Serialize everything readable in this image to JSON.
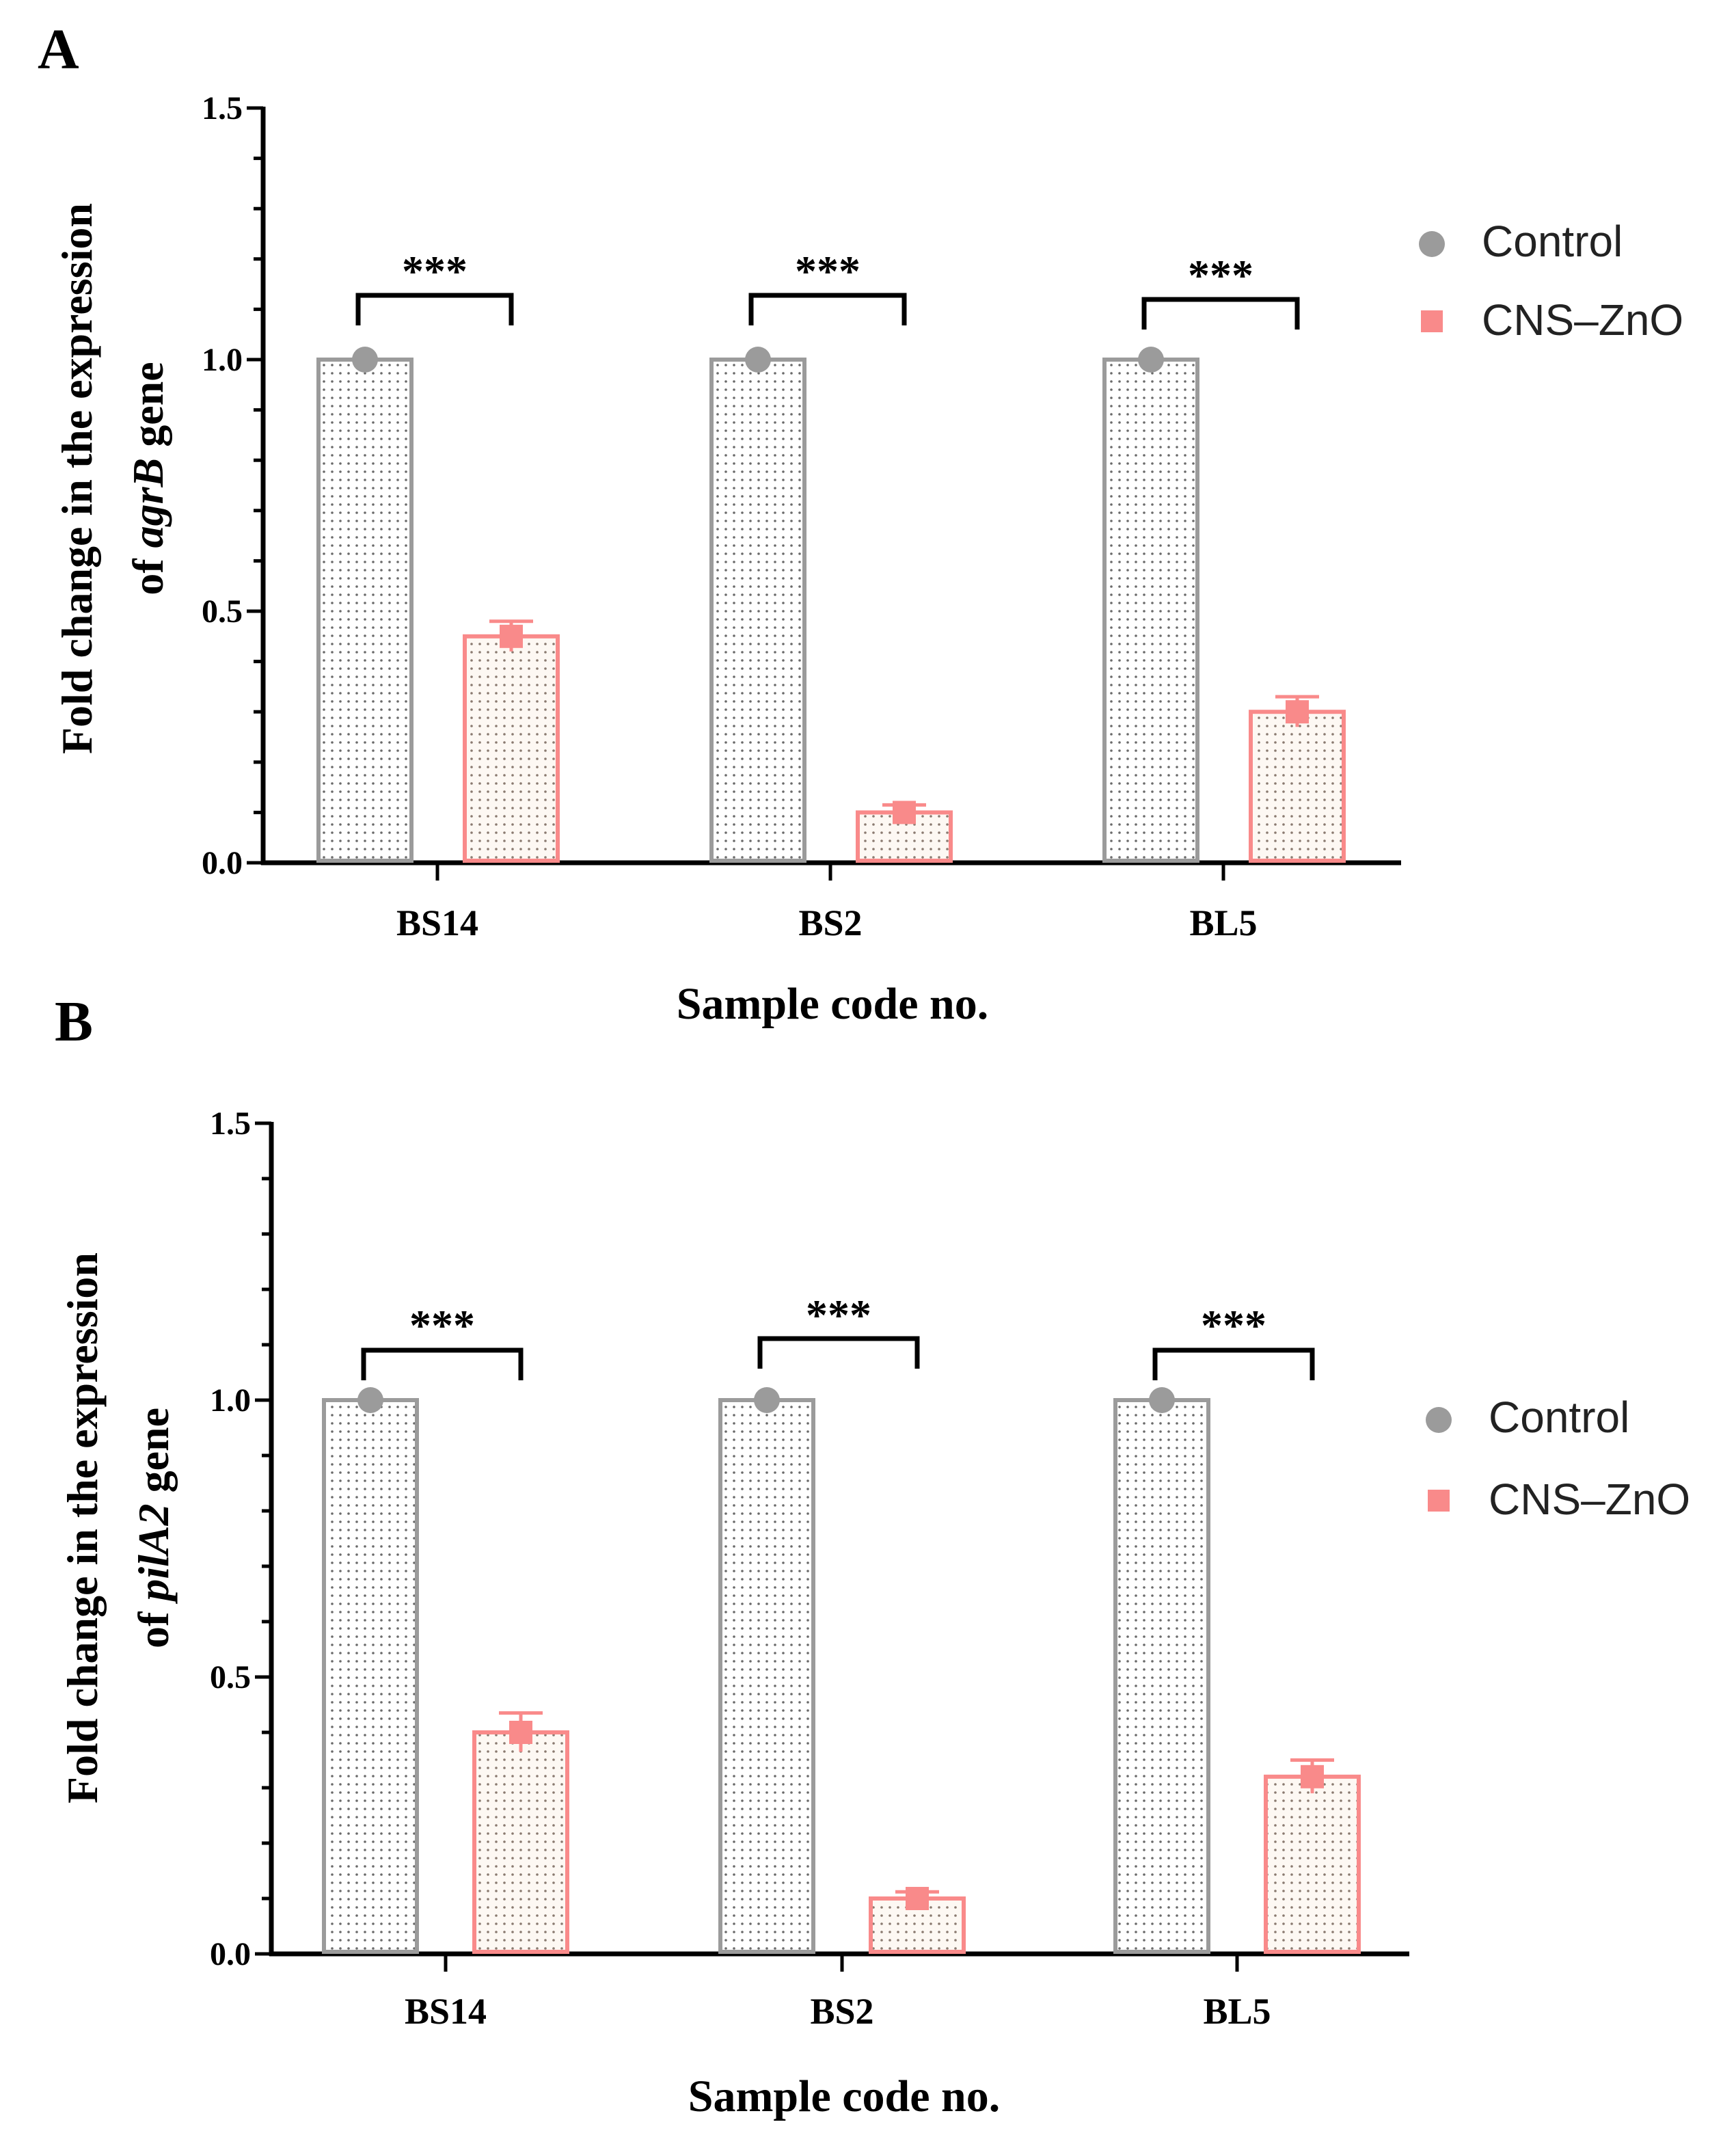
{
  "colors": {
    "control": "#9b9b9b",
    "treatment": "#f98a8a",
    "axis": "#000000",
    "bracket": "#000000"
  },
  "chart_data": [
    {
      "panel": "A",
      "type": "bar",
      "categories": [
        "BS14",
        "BS2",
        "BL5"
      ],
      "series": [
        {
          "name": "Control",
          "values": [
            1.0,
            1.0,
            1.0
          ],
          "errors": [
            0,
            0,
            0
          ]
        },
        {
          "name": "CNS–ZnO",
          "values": [
            0.45,
            0.1,
            0.3
          ],
          "errors": [
            0.03,
            0.015,
            0.03
          ]
        }
      ],
      "significance": [
        "***",
        "***",
        "***"
      ],
      "xlabel": "Sample code no.",
      "ylabel_parts": [
        "Fold change in the expression",
        "of ",
        "agrB",
        " gene"
      ],
      "ylim": [
        0,
        1.5
      ],
      "yticks": [
        "0.0",
        "0.5",
        "1.0",
        "1.5"
      ],
      "legend_position": "top-right"
    },
    {
      "panel": "B",
      "type": "bar",
      "categories": [
        "BS14",
        "BS2",
        "BL5"
      ],
      "series": [
        {
          "name": "Control",
          "values": [
            1.0,
            1.0,
            1.0
          ],
          "errors": [
            0,
            0,
            0
          ]
        },
        {
          "name": "CNS–ZnO",
          "values": [
            0.4,
            0.1,
            0.32
          ],
          "errors": [
            0.035,
            0.012,
            0.03
          ]
        }
      ],
      "significance": [
        "***",
        "***",
        "***"
      ],
      "xlabel": "Sample code no.",
      "ylabel_parts": [
        "Fold change in the expression",
        "of ",
        "pilA2",
        " gene"
      ],
      "ylim": [
        0,
        1.5
      ],
      "yticks": [
        "0.0",
        "0.5",
        "1.0",
        "1.5"
      ],
      "legend_position": "right"
    }
  ]
}
